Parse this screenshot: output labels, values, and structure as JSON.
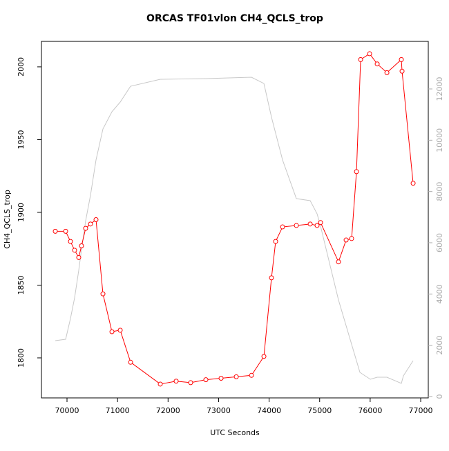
{
  "chart_data": {
    "type": "line",
    "title": "ORCAS TF01vlon CH4_QCLS_trop",
    "xlabel": "UTC Seconds",
    "ylabel": "CH4_QCLS_trop",
    "xlim": [
      69494,
      77150
    ],
    "xticks": [
      70000,
      71000,
      72000,
      73000,
      74000,
      75000,
      76000,
      77000
    ],
    "ylim": [
      1772.5,
      2017.5
    ],
    "yticks": [
      1800,
      1850,
      1900,
      1950,
      2000
    ],
    "y2lim": [
      -54,
      13856
    ],
    "y2ticks": [
      0,
      2000,
      4000,
      6000,
      8000,
      10000,
      12000
    ],
    "y2color": "#aaaaaa",
    "series": [
      {
        "color": "#ff0000",
        "markers": true,
        "x": [
          69768,
          69973,
          70068,
          70150,
          70232,
          70287,
          70369,
          70465,
          70574,
          70711,
          70889,
          71053,
          71258,
          71846,
          72160,
          72447,
          72748,
          73049,
          73350,
          73651,
          73897,
          74047,
          74129,
          74266,
          74539,
          74813,
          74949,
          75018,
          75373,
          75524,
          75633,
          75729,
          75811,
          75989,
          76139,
          76331,
          76617,
          76631,
          76850
        ],
        "values": [
          1887,
          1887,
          1880,
          1874,
          1869,
          1877,
          1889,
          1892,
          1895,
          1844,
          1818,
          1819,
          1797,
          1782,
          1784,
          1783,
          1785,
          1786,
          1787,
          1788,
          1801,
          1855,
          1880,
          1890,
          1891,
          1892,
          1891,
          1893,
          1866,
          1881,
          1882,
          1928,
          2005,
          2009,
          2002,
          1996,
          2005,
          1997,
          1920
        ]
      },
      {
        "color": "#c8c8c8",
        "axis": "y2",
        "markers": false,
        "x": [
          69768,
          69973,
          70068,
          70150,
          70232,
          70287,
          70369,
          70465,
          70574,
          70711,
          70889,
          71053,
          71258,
          71846,
          72748,
          73651,
          73897,
          74047,
          74266,
          74539,
          74813,
          74949,
          75018,
          75373,
          75797,
          76003,
          76139,
          76331,
          76617,
          76658,
          76850
        ],
        "values": [
          2179,
          2233,
          3040,
          3847,
          4923,
          5730,
          6860,
          7856,
          9228,
          10439,
          11111,
          11488,
          12107,
          12376,
          12403,
          12456,
          12214,
          10896,
          9228,
          7721,
          7641,
          7129,
          6645,
          3766,
          942,
          673,
          753,
          753,
          511,
          807,
          1399
        ]
      }
    ]
  }
}
